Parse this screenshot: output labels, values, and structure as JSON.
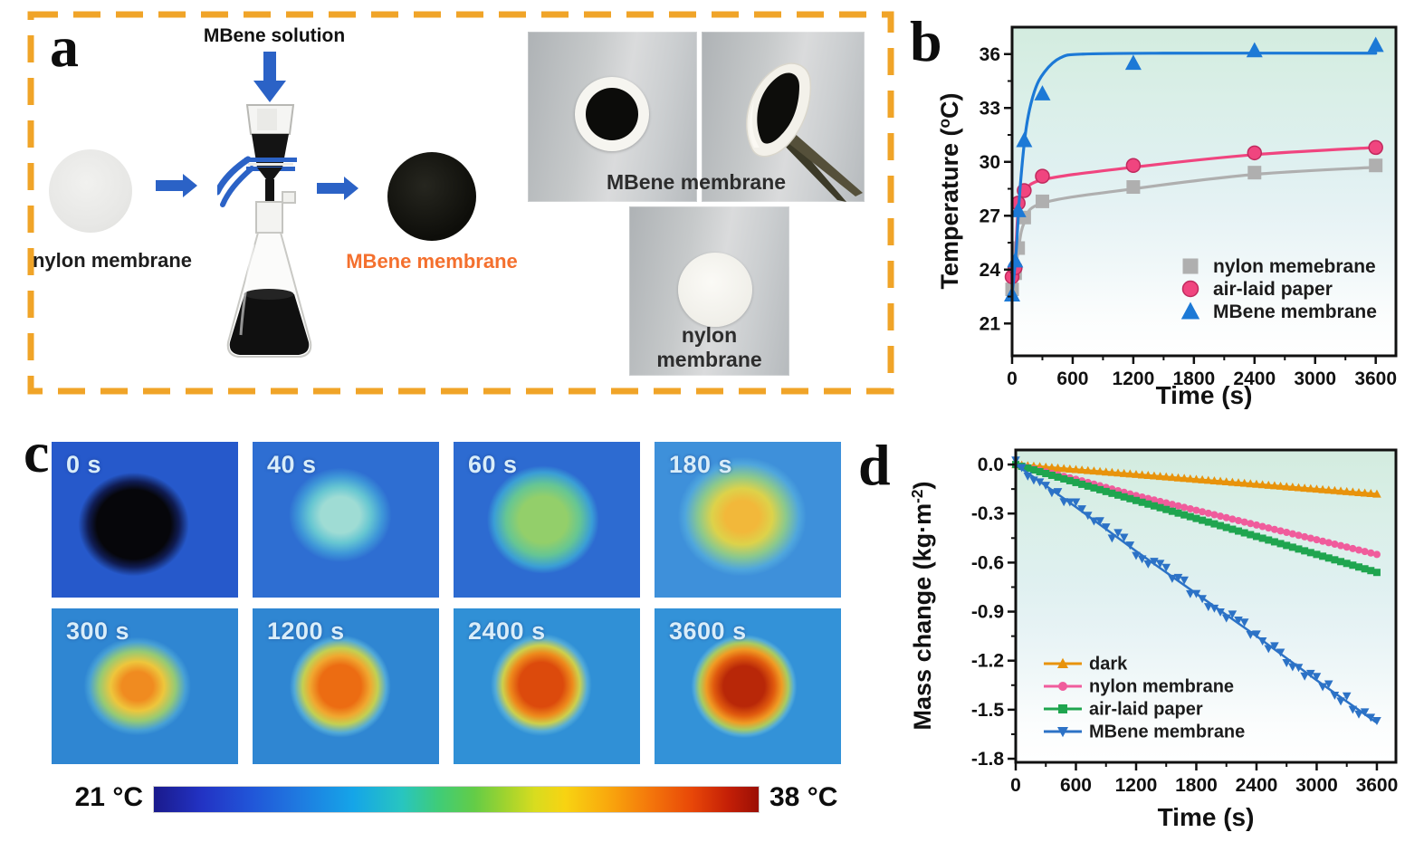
{
  "figure": {
    "panel_a": {
      "label": "a",
      "border_color": "#F0A428",
      "arrow_color": "#2B62C6",
      "solution_label": "MBene solution",
      "nylon_disc_label": "nylon membrane",
      "mbene_disc_label": "MBene membrane",
      "mbene_label_color": "#F4702E",
      "photos": {
        "mbene_caption": "MBene membrane",
        "nylon_caption": "nylon membrane"
      }
    },
    "panel_b": {
      "label": "b"
    },
    "panel_c": {
      "label": "c",
      "frames": [
        {
          "time": "0 s"
        },
        {
          "time": "40 s"
        },
        {
          "time": "60 s"
        },
        {
          "time": "180 s"
        },
        {
          "time": "300 s"
        },
        {
          "time": "1200 s"
        },
        {
          "time": "2400 s"
        },
        {
          "time": "3600 s"
        }
      ],
      "colorbar": {
        "min_label": "21 °C",
        "max_label": "38 °C"
      }
    },
    "panel_d": {
      "label": "d"
    }
  },
  "chart_data": [
    {
      "id": "b",
      "type": "line",
      "title": "",
      "xlabel": "Time (s)",
      "ylabel": "Temperature (°C)",
      "ylabel_parts": [
        "Temperature (",
        "o",
        "C)"
      ],
      "xlim": [
        0,
        3800
      ],
      "ylim": [
        19.2,
        37.5
      ],
      "xticks": [
        0,
        600,
        1200,
        1800,
        2400,
        3000,
        3600
      ],
      "yticks": [
        21,
        24,
        27,
        30,
        33,
        36
      ],
      "ytick_labels": [
        "21",
        "24",
        "27",
        "30",
        "33",
        "36"
      ],
      "grid": false,
      "legend_position": "lower right",
      "x": [
        0,
        30,
        60,
        120,
        300,
        1200,
        2400,
        3600
      ],
      "series": [
        {
          "name": "nylon memebrane",
          "color": "#AFAFAF",
          "marker": "square",
          "values": [
            22.9,
            23.8,
            25.2,
            26.9,
            27.8,
            28.6,
            29.4,
            29.8
          ],
          "line": [
            [
              0,
              22.9
            ],
            [
              30,
              23.9
            ],
            [
              60,
              25.0
            ],
            [
              120,
              26.6
            ],
            [
              300,
              27.7
            ],
            [
              1200,
              28.5
            ],
            [
              2400,
              29.3
            ],
            [
              3600,
              29.7
            ]
          ]
        },
        {
          "name": "air-laid paper",
          "color": "#F0457F",
          "marker": "circle",
          "values": [
            23.6,
            24.1,
            27.7,
            28.4,
            29.2,
            29.8,
            30.5,
            30.8
          ],
          "line": [
            [
              0,
              23.6
            ],
            [
              30,
              24.2
            ],
            [
              60,
              27.3
            ],
            [
              120,
              28.2
            ],
            [
              300,
              29.0
            ],
            [
              1200,
              29.7
            ],
            [
              2400,
              30.4
            ],
            [
              3600,
              30.8
            ]
          ]
        },
        {
          "name": "MBene membrane",
          "color": "#1C79D6",
          "marker": "triangle-up",
          "values": [
            22.6,
            24.5,
            27.3,
            31.2,
            33.8,
            35.5,
            36.2,
            36.5
          ],
          "line": [
            [
              0,
              22.6
            ],
            [
              40,
              25.0
            ],
            [
              80,
              28.6
            ],
            [
              140,
              31.9
            ],
            [
              220,
              33.9
            ],
            [
              320,
              35.0
            ],
            [
              480,
              35.8
            ],
            [
              700,
              36.0
            ],
            [
              1500,
              36.05
            ],
            [
              3600,
              36.05
            ]
          ]
        }
      ]
    },
    {
      "id": "d",
      "type": "line",
      "title": "",
      "xlabel": "Time (s)",
      "ylabel": "Mass change (kg·m⁻²)",
      "ylabel_parts": [
        "Mass change (kg·m",
        "-2",
        ")"
      ],
      "xlim": [
        0,
        3790
      ],
      "ylim": [
        -1.822,
        0.089
      ],
      "xticks": [
        0,
        600,
        1200,
        1800,
        2400,
        3000,
        3600
      ],
      "yticks": [
        0,
        -0.3,
        -0.6,
        -0.9,
        -1.2,
        -1.5,
        -1.8
      ],
      "ytick_labels": [
        "0.0",
        "-0.3",
        "-0.6",
        "-0.9",
        "-1.2",
        "-1.5",
        "-1.8"
      ],
      "grid": false,
      "legend_position": "lower left",
      "x": [
        0,
        600,
        1200,
        1800,
        2400,
        3000,
        3600
      ],
      "series": [
        {
          "name": "dark",
          "color": "#E8930C",
          "marker": "triangle-up",
          "dense": true,
          "values": [
            0,
            -0.03,
            -0.06,
            -0.09,
            -0.12,
            -0.15,
            -0.18
          ]
        },
        {
          "name": "nylon membrane",
          "color": "#F05C9C",
          "marker": "circle",
          "dense": true,
          "values": [
            0,
            -0.09,
            -0.19,
            -0.28,
            -0.37,
            -0.46,
            -0.55
          ]
        },
        {
          "name": "air-laid paper",
          "color": "#1FA54F",
          "marker": "square",
          "dense": true,
          "values": [
            0,
            -0.11,
            -0.22,
            -0.33,
            -0.44,
            -0.55,
            -0.66
          ]
        },
        {
          "name": "MBene membrane",
          "color": "#2C72C6",
          "marker": "triangle-down",
          "dense": true,
          "jitter": 0.035,
          "values": [
            0,
            -0.26,
            -0.53,
            -0.79,
            -1.05,
            -1.32,
            -1.58
          ]
        }
      ]
    }
  ]
}
